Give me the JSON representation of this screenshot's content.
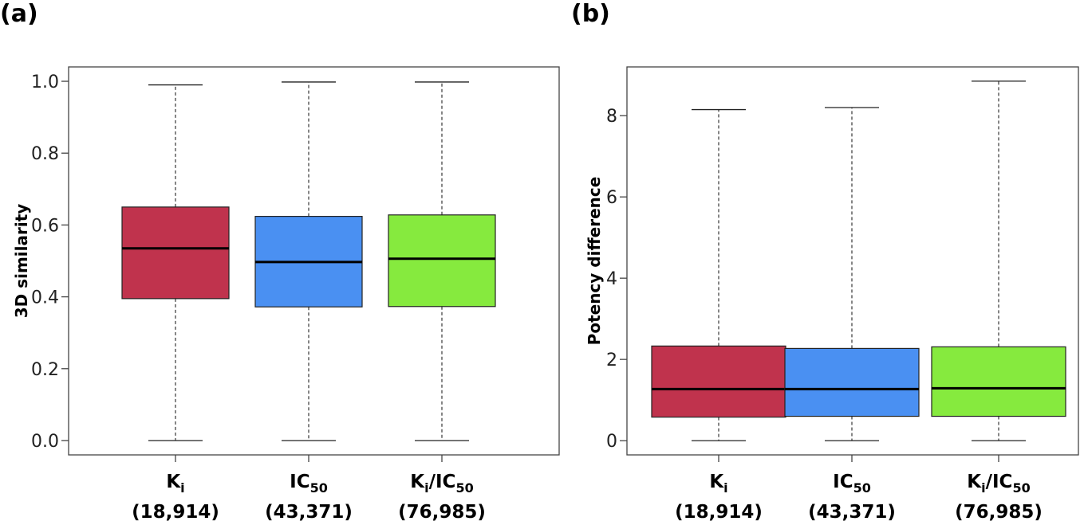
{
  "panels": [
    {
      "tag": "(a)"
    },
    {
      "tag": "(b)"
    }
  ],
  "chart_data": [
    {
      "type": "box",
      "panel": "(a)",
      "title": "",
      "xlabel": "",
      "ylabel": "3D similarity",
      "ylim": [
        -0.04,
        1.04
      ],
      "yticks": [
        0.0,
        0.2,
        0.4,
        0.6,
        0.8,
        1.0
      ],
      "ytick_labels": [
        "0.0",
        "0.2",
        "0.4",
        "0.6",
        "0.8",
        "1.0"
      ],
      "grid": false,
      "categories": [
        {
          "main": "K",
          "sub": "i",
          "rest": "",
          "rest_sub": "",
          "count": "(18,914)"
        },
        {
          "main": "IC",
          "sub": "50",
          "rest": "",
          "rest_sub": "",
          "count": "(43,371)"
        },
        {
          "main": "K",
          "sub": "i",
          "rest": "/IC",
          "rest_sub": "50",
          "count": "(76,985)"
        }
      ],
      "boxes": [
        {
          "whisker_low": 0.0,
          "q1": 0.395,
          "median": 0.535,
          "q3": 0.65,
          "whisker_high": 0.99,
          "color": "#c0334d"
        },
        {
          "whisker_low": 0.0,
          "q1": 0.372,
          "median": 0.497,
          "q3": 0.624,
          "whisker_high": 0.998,
          "color": "#4a90f2"
        },
        {
          "whisker_low": 0.0,
          "q1": 0.373,
          "median": 0.506,
          "q3": 0.628,
          "whisker_high": 0.998,
          "color": "#86ea3e"
        }
      ]
    },
    {
      "type": "box",
      "panel": "(b)",
      "title": "",
      "xlabel": "",
      "ylabel": "Potency difference",
      "ylim": [
        -0.35,
        9.2
      ],
      "yticks": [
        0,
        2,
        4,
        6,
        8
      ],
      "ytick_labels": [
        "0",
        "2",
        "4",
        "6",
        "8"
      ],
      "grid": false,
      "categories": [
        {
          "main": "K",
          "sub": "i",
          "rest": "",
          "rest_sub": "",
          "count": "(18,914)"
        },
        {
          "main": "IC",
          "sub": "50",
          "rest": "",
          "rest_sub": "",
          "count": "(43,371)"
        },
        {
          "main": "K",
          "sub": "i",
          "rest": "/IC",
          "rest_sub": "50",
          "count": "(76,985)"
        }
      ],
      "boxes": [
        {
          "whisker_low": 0.0,
          "q1": 0.58,
          "median": 1.27,
          "q3": 2.33,
          "whisker_high": 8.15,
          "color": "#c0334d"
        },
        {
          "whisker_low": 0.0,
          "q1": 0.6,
          "median": 1.27,
          "q3": 2.27,
          "whisker_high": 8.2,
          "color": "#4a90f2"
        },
        {
          "whisker_low": 0.0,
          "q1": 0.6,
          "median": 1.29,
          "q3": 2.31,
          "whisker_high": 8.85,
          "color": "#86ea3e"
        }
      ]
    }
  ]
}
